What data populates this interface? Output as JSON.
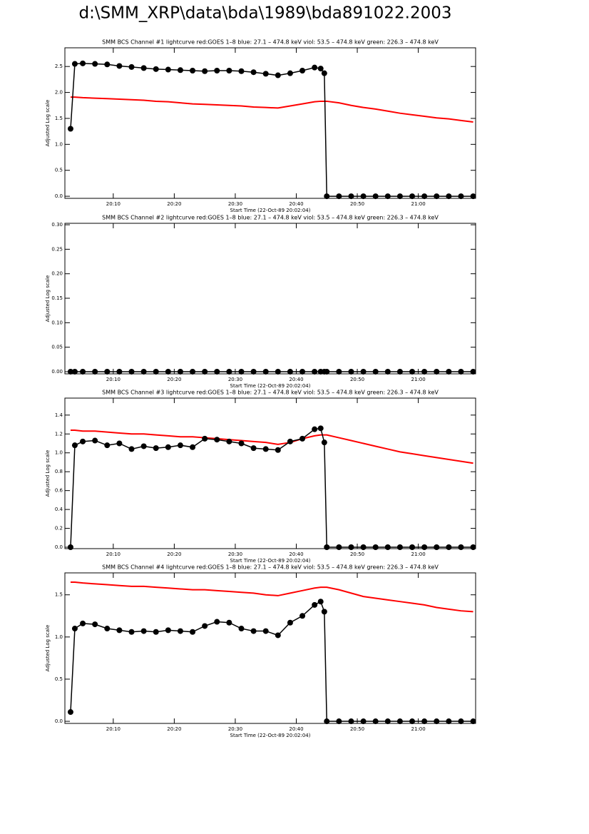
{
  "title": "d:\\SMM_XRP\\data\\bda\\1989\\bda891022.2003",
  "chart_data": [
    {
      "type": "line",
      "title": "SMM BCS Channel #1 lightcurve  red:GOES 1–8  blue: 27.1 – 474.8 keV  viol: 53.5 – 474.8 keV  green: 226.3 – 474.8 keV",
      "x_label": "Start Time (22-Oct-89 20:02:04)",
      "y_label": "Adjusted Log scale",
      "x": [
        3,
        3.7,
        5,
        7,
        9,
        11,
        13,
        15,
        17,
        19,
        21,
        23,
        25,
        27,
        29,
        31,
        33,
        35,
        37,
        39,
        41,
        43,
        44,
        44.6,
        45,
        47,
        49,
        51,
        53,
        55,
        57,
        59,
        61,
        63,
        65,
        67,
        69
      ],
      "xlim": [
        2.07,
        69.4
      ],
      "xticks": [
        {
          "value": 10,
          "label": "20:10"
        },
        {
          "value": 20,
          "label": "20:20"
        },
        {
          "value": 30,
          "label": "20:30"
        },
        {
          "value": 40,
          "label": "20:40"
        },
        {
          "value": 50,
          "label": "20:50"
        },
        {
          "value": 60,
          "label": "21:00"
        }
      ],
      "ylim": [
        -0.04,
        2.86
      ],
      "yticks": [
        {
          "value": 0,
          "label": "0.0"
        },
        0.5,
        {
          "value": 1,
          "label": "1.0"
        },
        1.5,
        {
          "value": 2,
          "label": "2.0"
        },
        2.5
      ],
      "series": [
        {
          "color": "#ff0000",
          "markers": false,
          "values": [
            1.91,
            1.91,
            1.9,
            1.89,
            1.88,
            1.87,
            1.86,
            1.85,
            1.83,
            1.82,
            1.8,
            1.78,
            1.77,
            1.76,
            1.75,
            1.74,
            1.72,
            1.71,
            1.7,
            1.74,
            1.78,
            1.82,
            1.83,
            1.83,
            1.83,
            1.8,
            1.75,
            1.71,
            1.68,
            1.64,
            1.6,
            1.57,
            1.54,
            1.51,
            1.49,
            1.46,
            1.43
          ]
        },
        {
          "color": "#000000",
          "markers": true,
          "values": [
            1.3,
            2.55,
            2.56,
            2.55,
            2.54,
            2.51,
            2.49,
            2.47,
            2.45,
            2.44,
            2.43,
            2.42,
            2.41,
            2.42,
            2.42,
            2.41,
            2.39,
            2.36,
            2.33,
            2.37,
            2.42,
            2.48,
            2.46,
            2.37,
            0,
            0,
            0,
            0,
            0,
            0,
            0,
            0,
            0,
            0,
            0,
            0,
            0
          ]
        }
      ]
    },
    {
      "type": "line",
      "title": "SMM BCS Channel #2 lightcurve  red:GOES 1–8  blue: 27.1 – 474.8 keV  viol: 53.5 – 474.8 keV  green: 226.3 – 474.8 keV",
      "x_label": "Start Time (22-Oct-89 20:02:04)",
      "y_label": "Adjusted Log scale",
      "x": [
        3,
        3.7,
        5,
        7,
        9,
        11,
        13,
        15,
        17,
        19,
        21,
        23,
        25,
        27,
        29,
        31,
        33,
        35,
        37,
        39,
        41,
        43,
        44,
        44.6,
        45,
        47,
        49,
        51,
        53,
        55,
        57,
        59,
        61,
        63,
        65,
        67,
        69
      ],
      "xlim": [
        2.07,
        69.4
      ],
      "xticks": [
        {
          "value": 10,
          "label": "20:10"
        },
        {
          "value": 20,
          "label": "20:20"
        },
        {
          "value": 30,
          "label": "20:30"
        },
        {
          "value": 40,
          "label": "20:40"
        },
        {
          "value": 50,
          "label": "20:50"
        },
        {
          "value": 60,
          "label": "21:00"
        }
      ],
      "ylim": [
        -0.0044,
        0.303
      ],
      "yticks": [
        {
          "value": 0,
          "label": "0.00"
        },
        0.05,
        {
          "value": 0.1,
          "label": "0.10"
        },
        0.15,
        {
          "value": 0.2,
          "label": "0.20"
        },
        0.25,
        {
          "value": 0.3,
          "label": "0.30"
        }
      ],
      "series": [
        {
          "color": "#000000",
          "markers": true,
          "values": [
            0,
            0,
            0,
            0,
            0,
            0,
            0,
            0,
            0,
            0,
            0,
            0,
            0,
            0,
            0,
            0,
            0,
            0,
            0,
            0,
            0,
            0,
            0,
            0,
            0,
            0,
            0,
            0,
            0,
            0,
            0,
            0,
            0,
            0,
            0,
            0,
            0
          ]
        }
      ]
    },
    {
      "type": "line",
      "title": "SMM BCS Channel #3 lightcurve  red:GOES 1–8  blue: 27.1 – 474.8 keV  viol: 53.5 – 474.8 keV  green: 226.3 – 474.8 keV",
      "x_label": "Start Time (22-Oct-89 20:02:04)",
      "y_label": "Adjusted Log scale",
      "x": [
        3,
        3.7,
        5,
        7,
        9,
        11,
        13,
        15,
        17,
        19,
        21,
        23,
        25,
        27,
        29,
        31,
        33,
        35,
        37,
        39,
        41,
        43,
        44,
        44.6,
        45,
        47,
        49,
        51,
        53,
        55,
        57,
        59,
        61,
        63,
        65,
        67,
        69
      ],
      "xlim": [
        2.07,
        69.4
      ],
      "xticks": [
        {
          "value": 10,
          "label": "20:10"
        },
        {
          "value": 20,
          "label": "20:20"
        },
        {
          "value": 30,
          "label": "20:30"
        },
        {
          "value": 40,
          "label": "20:40"
        },
        {
          "value": 50,
          "label": "20:50"
        },
        {
          "value": 60,
          "label": "21:00"
        }
      ],
      "ylim": [
        -0.015,
        1.58
      ],
      "yticks": [
        {
          "value": 0,
          "label": "0.0"
        },
        0.2,
        0.4,
        0.6,
        0.8,
        {
          "value": 1,
          "label": "1.0"
        },
        1.2,
        1.4
      ],
      "series": [
        {
          "color": "#ff0000",
          "markers": false,
          "values": [
            1.24,
            1.24,
            1.23,
            1.23,
            1.22,
            1.21,
            1.2,
            1.2,
            1.19,
            1.18,
            1.17,
            1.17,
            1.16,
            1.15,
            1.14,
            1.13,
            1.12,
            1.11,
            1.09,
            1.11,
            1.15,
            1.18,
            1.19,
            1.19,
            1.19,
            1.16,
            1.13,
            1.1,
            1.07,
            1.04,
            1.01,
            0.99,
            0.97,
            0.95,
            0.93,
            0.91,
            0.89
          ]
        },
        {
          "color": "#000000",
          "markers": true,
          "values": [
            0,
            1.08,
            1.12,
            1.13,
            1.08,
            1.1,
            1.04,
            1.07,
            1.05,
            1.06,
            1.08,
            1.06,
            1.15,
            1.14,
            1.12,
            1.1,
            1.05,
            1.04,
            1.03,
            1.12,
            1.15,
            1.25,
            1.26,
            1.11,
            0,
            0,
            0,
            0,
            0,
            0,
            0,
            0,
            0,
            0,
            0,
            0,
            0
          ]
        }
      ]
    },
    {
      "type": "line",
      "title": "SMM BCS Channel #4 lightcurve  red:GOES 1–8  blue: 27.1 – 474.8 keV  viol: 53.5 – 474.8 keV  green: 226.3 – 474.8 keV",
      "x_label": "Start Time (22-Oct-89 20:02:04)",
      "y_label": "Adjusted Log scale",
      "x": [
        3,
        3.7,
        5,
        7,
        9,
        11,
        13,
        15,
        17,
        19,
        21,
        23,
        25,
        27,
        29,
        31,
        33,
        35,
        37,
        39,
        41,
        43,
        44,
        44.6,
        45,
        47,
        49,
        51,
        53,
        55,
        57,
        59,
        61,
        63,
        65,
        67,
        69
      ],
      "xlim": [
        2.07,
        69.4
      ],
      "xticks": [
        {
          "value": 10,
          "label": "20:10"
        },
        {
          "value": 20,
          "label": "20:20"
        },
        {
          "value": 30,
          "label": "20:30"
        },
        {
          "value": 40,
          "label": "20:40"
        },
        {
          "value": 50,
          "label": "20:50"
        },
        {
          "value": 60,
          "label": "21:00"
        }
      ],
      "ylim": [
        -0.025,
        1.76
      ],
      "yticks": [
        {
          "value": 0,
          "label": "0.0"
        },
        0.5,
        {
          "value": 1,
          "label": "1.0"
        },
        1.5
      ],
      "series": [
        {
          "color": "#ff0000",
          "markers": false,
          "values": [
            1.65,
            1.65,
            1.64,
            1.63,
            1.62,
            1.61,
            1.6,
            1.6,
            1.59,
            1.58,
            1.57,
            1.56,
            1.56,
            1.55,
            1.54,
            1.53,
            1.52,
            1.5,
            1.49,
            1.52,
            1.55,
            1.58,
            1.59,
            1.59,
            1.59,
            1.56,
            1.52,
            1.48,
            1.46,
            1.44,
            1.42,
            1.4,
            1.38,
            1.35,
            1.33,
            1.31,
            1.3
          ]
        },
        {
          "color": "#000000",
          "markers": true,
          "values": [
            0.11,
            1.1,
            1.16,
            1.15,
            1.1,
            1.08,
            1.06,
            1.07,
            1.06,
            1.08,
            1.07,
            1.06,
            1.13,
            1.18,
            1.17,
            1.1,
            1.07,
            1.07,
            1.02,
            1.17,
            1.25,
            1.38,
            1.42,
            1.3,
            0,
            0,
            0,
            0,
            0,
            0,
            0,
            0,
            0,
            0,
            0,
            0,
            0
          ]
        }
      ]
    }
  ]
}
